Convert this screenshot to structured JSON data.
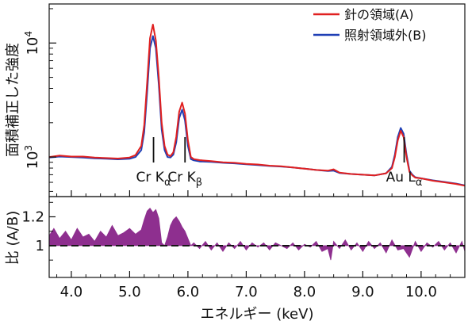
{
  "chart_data": [
    {
      "panel": "top",
      "type": "line",
      "ylabel": "面積補正した強度",
      "y_scale": "log",
      "ylim": [
        450,
        22000
      ],
      "xlim": [
        3.62,
        10.75
      ],
      "yticks": [
        {
          "value": 1000,
          "base": "10",
          "exp": "3"
        },
        {
          "value": 10000,
          "base": "10",
          "exp": "4"
        }
      ],
      "legend": {
        "placement": "top-right"
      },
      "series": [
        {
          "name": "針の領域(A)",
          "color": "#e02020",
          "x": [
            3.62,
            3.8,
            4.0,
            4.2,
            4.4,
            4.6,
            4.8,
            5.0,
            5.1,
            5.2,
            5.25,
            5.3,
            5.35,
            5.4,
            5.45,
            5.5,
            5.55,
            5.6,
            5.65,
            5.7,
            5.75,
            5.8,
            5.85,
            5.9,
            5.95,
            6.0,
            6.05,
            6.1,
            6.2,
            6.4,
            6.6,
            6.8,
            7.0,
            7.2,
            7.4,
            7.6,
            7.8,
            8.0,
            8.2,
            8.4,
            8.5,
            8.6,
            8.8,
            9.0,
            9.2,
            9.4,
            9.5,
            9.55,
            9.6,
            9.65,
            9.7,
            9.75,
            9.8,
            9.85,
            9.9,
            10.0,
            10.2,
            10.4,
            10.6,
            10.75
          ],
          "y": [
            1000,
            1030,
            1010,
            1010,
            990,
            980,
            970,
            990,
            1040,
            1250,
            1900,
            4500,
            11000,
            14500,
            10500,
            5000,
            2000,
            1250,
            1050,
            1020,
            1100,
            1500,
            2500,
            3000,
            2400,
            1400,
            1000,
            960,
            940,
            920,
            900,
            890,
            870,
            860,
            840,
            830,
            810,
            790,
            770,
            760,
            780,
            730,
            710,
            700,
            690,
            720,
            800,
            1000,
            1400,
            1700,
            1500,
            1000,
            740,
            690,
            660,
            650,
            620,
            600,
            580,
            560
          ]
        },
        {
          "name": "照射領域外(B)",
          "color": "#1f3fb5",
          "x": [
            3.62,
            3.8,
            4.0,
            4.2,
            4.4,
            4.6,
            4.8,
            5.0,
            5.1,
            5.2,
            5.25,
            5.3,
            5.35,
            5.4,
            5.45,
            5.5,
            5.55,
            5.6,
            5.65,
            5.7,
            5.75,
            5.8,
            5.85,
            5.9,
            5.95,
            6.0,
            6.05,
            6.1,
            6.2,
            6.4,
            6.6,
            6.8,
            7.0,
            7.2,
            7.4,
            7.6,
            7.8,
            8.0,
            8.2,
            8.4,
            8.5,
            8.6,
            8.8,
            9.0,
            9.2,
            9.4,
            9.5,
            9.55,
            9.6,
            9.65,
            9.7,
            9.75,
            9.8,
            9.85,
            9.9,
            10.0,
            10.2,
            10.4,
            10.6,
            10.75
          ],
          "y": [
            990,
            1010,
            1000,
            990,
            975,
            965,
            955,
            965,
            1000,
            1150,
            1650,
            3700,
            9000,
            11500,
            9000,
            4300,
            1750,
            1150,
            1000,
            990,
            1050,
            1350,
            2200,
            2600,
            2100,
            1250,
            960,
            935,
            915,
            905,
            890,
            880,
            865,
            850,
            835,
            825,
            810,
            790,
            770,
            755,
            760,
            725,
            710,
            700,
            690,
            720,
            820,
            1050,
            1500,
            1800,
            1600,
            1050,
            760,
            700,
            665,
            650,
            625,
            605,
            585,
            565
          ]
        }
      ],
      "annotations": [
        {
          "x": 5.41,
          "text": "Cr K",
          "sub": "α"
        },
        {
          "x": 5.95,
          "text": "Cr K",
          "sub": "β"
        },
        {
          "x": 9.71,
          "text": "Au L",
          "sub": "α"
        }
      ]
    },
    {
      "panel": "bottom",
      "type": "area",
      "ylabel": "比 (A/B)",
      "ylim": [
        0.78,
        1.34
      ],
      "xlim": [
        3.62,
        10.75
      ],
      "baseline": 1,
      "yticks": [
        1,
        1.2
      ],
      "xlabel": "エネルギー (keV)",
      "xticks": [
        "4.0",
        "5.0",
        "6.0",
        "7.0",
        "8.0",
        "9.0",
        "10.0"
      ],
      "color": "#8e2f8f",
      "x": [
        3.62,
        3.7,
        3.8,
        3.9,
        4.0,
        4.1,
        4.2,
        4.3,
        4.4,
        4.5,
        4.6,
        4.7,
        4.8,
        4.9,
        5.0,
        5.1,
        5.2,
        5.25,
        5.3,
        5.35,
        5.4,
        5.45,
        5.5,
        5.55,
        5.6,
        5.65,
        5.7,
        5.75,
        5.8,
        5.85,
        5.9,
        5.95,
        6.0,
        6.05,
        6.1,
        6.2,
        6.3,
        6.4,
        6.5,
        6.6,
        6.7,
        6.8,
        6.9,
        7.0,
        7.1,
        7.2,
        7.3,
        7.4,
        7.5,
        7.6,
        7.7,
        7.8,
        7.9,
        8.0,
        8.1,
        8.2,
        8.3,
        8.4,
        8.45,
        8.5,
        8.6,
        8.7,
        8.8,
        8.9,
        9.0,
        9.1,
        9.2,
        9.3,
        9.4,
        9.5,
        9.6,
        9.7,
        9.8,
        9.9,
        10.0,
        10.1,
        10.2,
        10.3,
        10.4,
        10.5,
        10.6,
        10.7,
        10.75
      ],
      "y": [
        1.07,
        1.12,
        1.05,
        1.1,
        1.04,
        1.12,
        1.06,
        1.08,
        1.03,
        1.1,
        1.06,
        1.14,
        1.07,
        1.09,
        1.12,
        1.08,
        1.11,
        1.18,
        1.24,
        1.26,
        1.23,
        1.25,
        1.19,
        1.02,
        1.0,
        1.06,
        1.14,
        1.18,
        1.2,
        1.17,
        1.13,
        1.1,
        1.05,
        1.0,
        1.02,
        0.98,
        1.03,
        0.97,
        1.02,
        0.96,
        1.02,
        0.98,
        1.03,
        0.97,
        1.02,
        0.99,
        1.02,
        0.97,
        1.02,
        1.0,
        0.98,
        1.02,
        0.97,
        1.01,
        0.99,
        1.03,
        0.96,
        0.98,
        0.9,
        1.03,
        0.98,
        1.04,
        0.97,
        1.02,
        0.96,
        1.03,
        0.98,
        1.02,
        0.95,
        1.04,
        0.97,
        0.98,
        0.92,
        1.03,
        0.96,
        1.02,
        0.99,
        1.03,
        0.97,
        1.02,
        0.95,
        1.03,
        0.96
      ]
    }
  ]
}
